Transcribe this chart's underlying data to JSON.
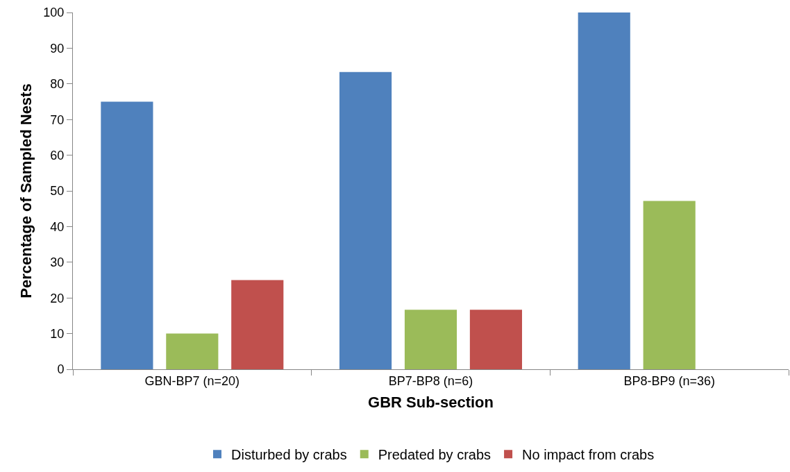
{
  "chart_data": {
    "type": "bar",
    "xlabel": "GBR Sub-section",
    "ylabel": "Percentage of Sampled Nests",
    "categories": [
      "GBN-BP7 (n=20)",
      "BP7-BP8 (n=6)",
      "BP8-BP9 (n=36)"
    ],
    "series": [
      {
        "name": "Disturbed by crabs",
        "color": "#4f81bd",
        "values": [
          75,
          83.3,
          100
        ]
      },
      {
        "name": "Predated by crabs",
        "color": "#9bbb59",
        "values": [
          10,
          16.7,
          47.2
        ]
      },
      {
        "name": "No impact from crabs",
        "color": "#c0504d",
        "values": [
          25,
          16.7,
          0
        ]
      }
    ],
    "ylim": [
      0,
      100
    ],
    "yticks": [
      0,
      10,
      20,
      30,
      40,
      50,
      60,
      70,
      80,
      90,
      100
    ],
    "legend": "bottom"
  }
}
